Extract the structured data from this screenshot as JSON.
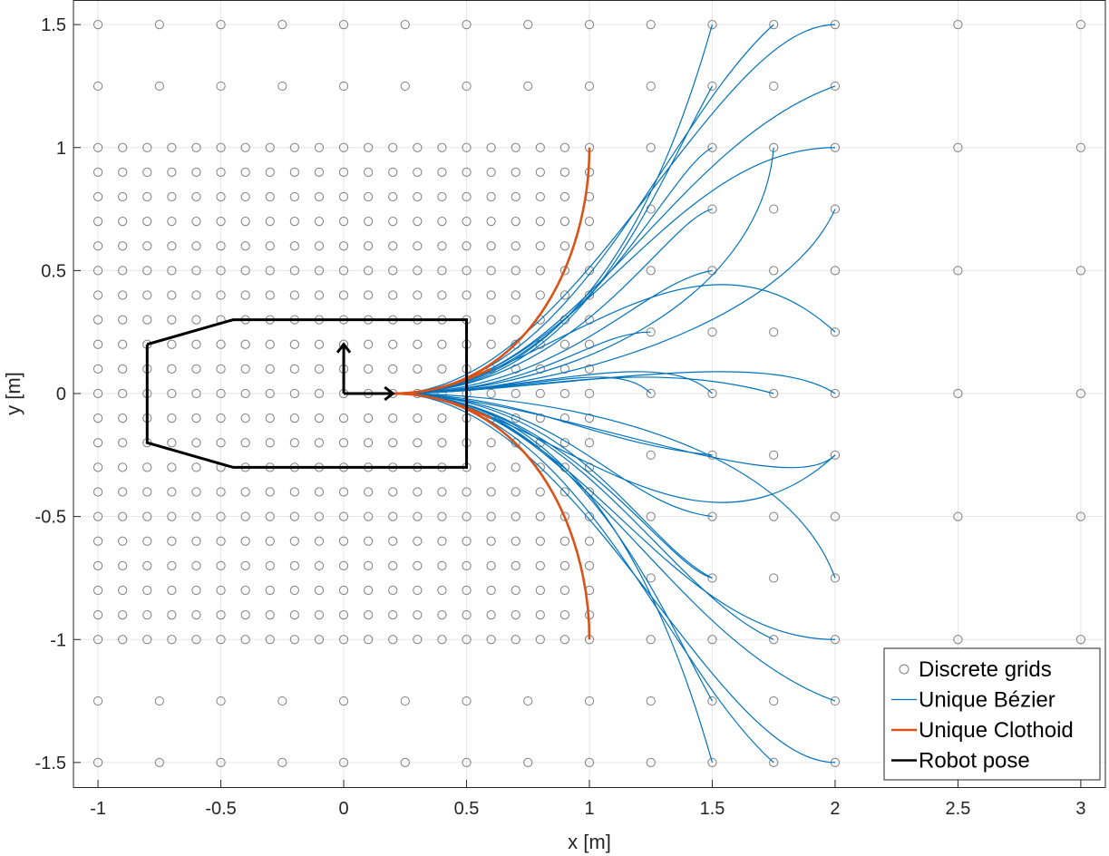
{
  "chart_data": {
    "type": "line",
    "title": "",
    "xlabel": "x [m]",
    "ylabel": "y [m]",
    "xlim": [
      -1.1,
      3.1
    ],
    "ylim": [
      -1.6,
      1.6
    ],
    "xticks": [
      -1,
      -0.5,
      0,
      0.5,
      1,
      1.5,
      2,
      2.5,
      3
    ],
    "xtick_labels": [
      "-1",
      "-0.5",
      "0",
      "0.5",
      "1",
      "1.5",
      "2",
      "2.5",
      "3"
    ],
    "yticks": [
      -1.5,
      -1,
      -0.5,
      0,
      0.5,
      1,
      1.5
    ],
    "ytick_labels": [
      "-1.5",
      "-1",
      "-0.5",
      "0",
      "0.5",
      "1",
      "1.5"
    ],
    "grid": true,
    "legend_position": "bottom-right",
    "legend": [
      {
        "label": "Discrete grids",
        "marker": "circle",
        "color": "#7f7f7f"
      },
      {
        "label": "Unique Bézier",
        "marker": "line",
        "color": "#0072bd"
      },
      {
        "label": "Unique Clothoid",
        "marker": "line",
        "color": "#d95319"
      },
      {
        "label": "Robot pose",
        "marker": "line",
        "color": "#000000"
      }
    ],
    "grid_points": {
      "fine_region": {
        "x_range": [
          -1,
          1
        ],
        "y_range": [
          -1,
          1
        ],
        "step": 0.1
      },
      "coarse_x": [
        -1,
        -0.75,
        -0.5,
        -0.25,
        0,
        0.25,
        0.5,
        0.75,
        1,
        1.25,
        1.5,
        1.75,
        2,
        2.5,
        3
      ],
      "coarse_rows": [
        {
          "y": 1.5,
          "x": [
            -1,
            -0.75,
            -0.5,
            -0.25,
            0,
            0.25,
            0.5,
            0.75,
            1,
            1.25,
            1.5,
            1.75,
            2,
            2.5,
            3
          ]
        },
        {
          "y": 1.25,
          "x": [
            -1,
            -0.75,
            -0.5,
            -0.25,
            0,
            0.25,
            0.5,
            0.75,
            1,
            1.25,
            1.5,
            1.75,
            2
          ]
        },
        {
          "y": 1,
          "x": [
            1.25,
            1.5,
            1.75,
            2,
            2.5,
            3
          ]
        },
        {
          "y": 0.75,
          "x": [
            1.25,
            1.5,
            1.75,
            2
          ]
        },
        {
          "y": 0.5,
          "x": [
            1.25,
            1.5,
            1.75,
            2,
            2.5,
            3
          ]
        },
        {
          "y": 0.25,
          "x": [
            1.25,
            1.5,
            1.75,
            2
          ]
        },
        {
          "y": 0,
          "x": [
            1.25,
            1.5,
            1.75,
            2,
            2.5,
            3
          ]
        },
        {
          "y": -0.25,
          "x": [
            1.25,
            1.5,
            1.75,
            2
          ]
        },
        {
          "y": -0.5,
          "x": [
            1.25,
            1.5,
            1.75,
            2,
            2.5,
            3
          ]
        },
        {
          "y": -0.75,
          "x": [
            1.25,
            1.5,
            1.75,
            2
          ]
        },
        {
          "y": -1,
          "x": [
            1.25,
            1.5,
            1.75,
            2,
            2.5,
            3
          ]
        },
        {
          "y": -1.25,
          "x": [
            -1,
            -0.75,
            -0.5,
            -0.25,
            0,
            0.25,
            0.5,
            0.75,
            1,
            1.25,
            1.5,
            1.75,
            2
          ]
        },
        {
          "y": -1.5,
          "x": [
            -1,
            -0.75,
            -0.5,
            -0.25,
            0,
            0.25,
            0.5,
            0.75,
            1,
            1.25,
            1.5,
            1.75,
            2,
            2.5,
            3
          ]
        }
      ]
    },
    "series": [
      {
        "name": "Unique Bézier",
        "color": "#0072bd",
        "curves": [
          [
            [
              0.2,
              0
            ],
            [
              0.95,
              0
            ],
            [
              1.3,
              0.8
            ],
            [
              1.5,
              1.5
            ]
          ],
          [
            [
              0.2,
              0
            ],
            [
              0.95,
              0
            ],
            [
              1.3,
              1.1
            ],
            [
              1.75,
              1.5
            ]
          ],
          [
            [
              0.2,
              0
            ],
            [
              0.95,
              0
            ],
            [
              1.5,
              1.5
            ],
            [
              2,
              1.5
            ]
          ],
          [
            [
              0.2,
              0
            ],
            [
              0.95,
              0
            ],
            [
              1.3,
              1.0
            ],
            [
              2,
              1.25
            ]
          ],
          [
            [
              0.2,
              0
            ],
            [
              0.95,
              0
            ],
            [
              1.3,
              1.0
            ],
            [
              2,
              1.0
            ]
          ],
          [
            [
              0.2,
              0
            ],
            [
              0.95,
              0
            ],
            [
              1.2,
              0.7
            ],
            [
              1.5,
              1.25
            ]
          ],
          [
            [
              0.2,
              0
            ],
            [
              0.95,
              0
            ],
            [
              1.3,
              0.9
            ],
            [
              1.5,
              1.0
            ]
          ],
          [
            [
              0.2,
              0
            ],
            [
              0.95,
              0
            ],
            [
              1.3,
              0.7
            ],
            [
              1.5,
              0.75
            ]
          ],
          [
            [
              0.2,
              0
            ],
            [
              0.95,
              0
            ],
            [
              1.7,
              0.4
            ],
            [
              1.75,
              1.0
            ]
          ],
          [
            [
              0.2,
              0
            ],
            [
              0.9,
              0
            ],
            [
              1.8,
              0.3
            ],
            [
              2,
              0.75
            ]
          ],
          [
            [
              0.2,
              0
            ],
            [
              0.9,
              0
            ],
            [
              1.2,
              0.45
            ],
            [
              1.5,
              0.5
            ]
          ],
          [
            [
              0.2,
              0
            ],
            [
              0.8,
              0
            ],
            [
              1.0,
              0.25
            ],
            [
              1.25,
              0.25
            ]
          ],
          [
            [
              0.2,
              0
            ],
            [
              0.8,
              0
            ],
            [
              1.4,
              0.8
            ],
            [
              2,
              0.25
            ]
          ],
          [
            [
              0.2,
              0
            ],
            [
              0.8,
              0
            ],
            [
              1.7,
              0.2
            ],
            [
              2,
              0
            ]
          ],
          [
            [
              0.2,
              0
            ],
            [
              0.75,
              0
            ],
            [
              1.1,
              0.15
            ],
            [
              1.25,
              0
            ]
          ],
          [
            [
              0.2,
              0
            ],
            [
              0.75,
              0
            ],
            [
              1.3,
              0.2
            ],
            [
              1.5,
              0
            ]
          ],
          [
            [
              0.2,
              0
            ],
            [
              0.75,
              0
            ],
            [
              1.2,
              0.15
            ],
            [
              1.75,
              0
            ]
          ],
          [
            [
              0.2,
              0
            ],
            [
              0.75,
              0
            ],
            [
              1.0,
              -0.2
            ],
            [
              1.5,
              -0.25
            ]
          ],
          [
            [
              0.2,
              0
            ],
            [
              0.8,
              0
            ],
            [
              1.4,
              -0.8
            ],
            [
              2,
              -0.25
            ]
          ],
          [
            [
              0.2,
              0
            ],
            [
              0.8,
              0
            ],
            [
              1.8,
              -0.45
            ],
            [
              2,
              -0.25
            ]
          ],
          [
            [
              0.2,
              0
            ],
            [
              0.9,
              0
            ],
            [
              1.1,
              -0.45
            ],
            [
              1.5,
              -0.5
            ]
          ],
          [
            [
              0.2,
              0
            ],
            [
              0.9,
              0
            ],
            [
              1.3,
              -0.7
            ],
            [
              1.5,
              -0.75
            ]
          ],
          [
            [
              0.2,
              0
            ],
            [
              0.9,
              0
            ],
            [
              1.8,
              -0.2
            ],
            [
              2,
              -0.75
            ]
          ],
          [
            [
              0.2,
              0
            ],
            [
              0.95,
              0
            ],
            [
              1.2,
              -0.6
            ],
            [
              1.5,
              -0.75
            ]
          ],
          [
            [
              0.2,
              0
            ],
            [
              0.95,
              0
            ],
            [
              1.3,
              -1.0
            ],
            [
              2,
              -1.0
            ]
          ],
          [
            [
              0.2,
              0
            ],
            [
              0.95,
              0
            ],
            [
              1.3,
              -0.8
            ],
            [
              1.75,
              -1.0
            ]
          ],
          [
            [
              0.2,
              0
            ],
            [
              0.95,
              0
            ],
            [
              1.3,
              -1.0
            ],
            [
              2,
              -1.25
            ]
          ],
          [
            [
              0.2,
              0
            ],
            [
              0.95,
              0
            ],
            [
              1.5,
              -1.5
            ],
            [
              2,
              -1.5
            ]
          ],
          [
            [
              0.2,
              0
            ],
            [
              0.95,
              0
            ],
            [
              1.3,
              -0.9
            ],
            [
              1.5,
              -1.25
            ]
          ],
          [
            [
              0.2,
              0
            ],
            [
              0.95,
              0
            ],
            [
              1.3,
              -1.1
            ],
            [
              1.75,
              -1.5
            ]
          ],
          [
            [
              0.2,
              0
            ],
            [
              0.95,
              0
            ],
            [
              1.3,
              -0.8
            ],
            [
              1.5,
              -1.5
            ]
          ]
        ]
      },
      {
        "name": "Unique Clothoid",
        "color": "#d95319",
        "curves": [
          [
            [
              0.2,
              0
            ],
            [
              0.75,
              0
            ],
            [
              1.0,
              0.55
            ],
            [
              1.0,
              1.0
            ]
          ],
          [
            [
              0.2,
              0
            ],
            [
              0.75,
              0
            ],
            [
              1.0,
              -0.55
            ],
            [
              1.0,
              -1.0
            ]
          ],
          [
            [
              0.2,
              0
            ],
            [
              0.4,
              0
            ],
            [
              0.55,
              0.08
            ],
            [
              0.6,
              0.1
            ]
          ],
          [
            [
              0.2,
              0
            ],
            [
              0.4,
              0
            ],
            [
              0.55,
              -0.08
            ],
            [
              0.6,
              -0.1
            ]
          ]
        ]
      }
    ],
    "robot_pose": {
      "name": "Robot pose",
      "color": "#000000",
      "footprint": [
        [
          -0.8,
          0.2
        ],
        [
          -0.45,
          0.3
        ],
        [
          0.5,
          0.3
        ],
        [
          0.5,
          -0.3
        ],
        [
          -0.45,
          -0.3
        ],
        [
          -0.8,
          -0.2
        ],
        [
          -0.8,
          0.2
        ]
      ],
      "axes": {
        "origin": [
          0,
          0
        ],
        "x_tip": [
          0.2,
          0
        ],
        "y_tip": [
          0,
          0.2
        ]
      }
    }
  }
}
